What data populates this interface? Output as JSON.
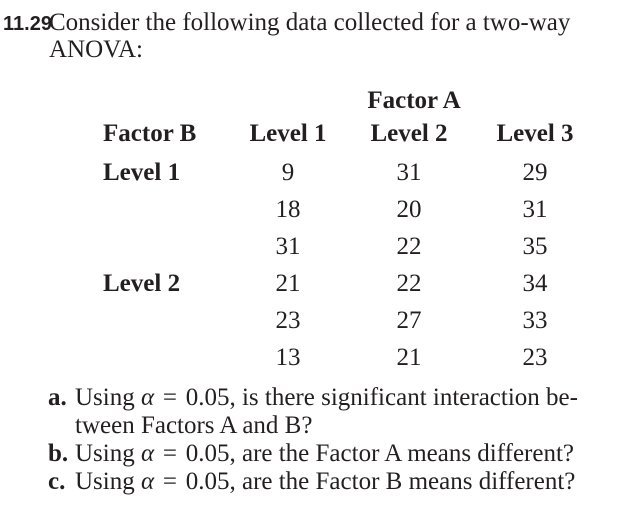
{
  "problem": {
    "number": "11.29",
    "statement_lines": [
      "Consider the following data collected for a two-way",
      "ANOVA:"
    ]
  },
  "table": {
    "group_header": "Factor A",
    "columns": [
      "Factor B",
      "Level 1",
      "Level 2",
      "Level 3"
    ],
    "row_groups": [
      {
        "label": "Level 1",
        "rows": [
          [
            "9",
            "31",
            "29"
          ],
          [
            "18",
            "20",
            "31"
          ],
          [
            "31",
            "22",
            "35"
          ]
        ]
      },
      {
        "label": "Level 2",
        "rows": [
          [
            "21",
            "22",
            "34"
          ],
          [
            "23",
            "27",
            "33"
          ],
          [
            "13",
            "21",
            "23"
          ]
        ]
      }
    ]
  },
  "questions": [
    {
      "label": "a.",
      "pre": "Using",
      "alpha": "α",
      "eq": "=",
      "post": "0.05, is there significant interaction be-",
      "line2": "tween Factors A and B?"
    },
    {
      "label": "b.",
      "pre": "Using",
      "alpha": "α",
      "eq": "=",
      "post": "0.05, are the Factor A means different?"
    },
    {
      "label": "c.",
      "pre": "Using",
      "alpha": "α",
      "eq": "=",
      "post": "0.05, are the Factor B means different?"
    }
  ],
  "colors": {
    "text": "#231f20",
    "background": "#ffffff"
  }
}
